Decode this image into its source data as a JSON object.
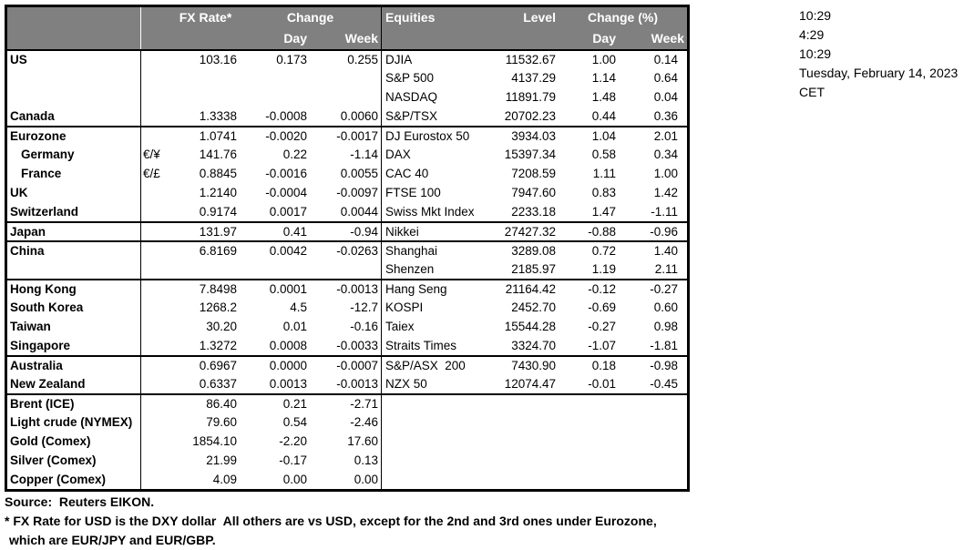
{
  "colors": {
    "header_bg": "#808080",
    "header_text": "#ffffff",
    "border": "#000000",
    "body_text": "#000000",
    "background": "#ffffff"
  },
  "header": {
    "fx_title": "FX Rate*",
    "fx_change": "Change",
    "fx_day": "Day",
    "fx_week": "Week",
    "eq_title": "Equities",
    "eq_level": "Level",
    "eq_change": "Change (%)",
    "eq_day": "Day",
    "eq_week": "Week"
  },
  "timestamps": [
    "10:29",
    "4:29",
    "10:29",
    "Tuesday, February 14, 2023",
    "CET"
  ],
  "rows": [
    {
      "group_start": true,
      "fx": {
        "label": "US",
        "rate": "103.16",
        "day": "0.173",
        "week": "0.255"
      },
      "eq": {
        "name": "DJIA",
        "level": "11532.67",
        "day": "1.00",
        "week": "0.14"
      }
    },
    {
      "group_start": false,
      "eq": {
        "name": "S&P 500",
        "level": "4137.29",
        "day": "1.14",
        "week": "0.64"
      }
    },
    {
      "group_start": false,
      "eq": {
        "name": "NASDAQ",
        "level": "11891.79",
        "day": "1.48",
        "week": "0.04"
      }
    },
    {
      "group_start": false,
      "fx": {
        "label": "Canada",
        "rate": "1.3338",
        "day": "-0.0008",
        "week": "0.0060"
      },
      "eq": {
        "name": "S&P/TSX",
        "level": "20702.23",
        "day": "0.44",
        "week": "0.36"
      }
    },
    {
      "group_start": true,
      "fx": {
        "label": "Eurozone",
        "rate": "1.0741",
        "day": "-0.0020",
        "week": "-0.0017"
      },
      "eq": {
        "name": "DJ Eurostox 50",
        "level": "3934.03",
        "day": "1.04",
        "week": "2.01"
      }
    },
    {
      "group_start": false,
      "fx": {
        "label": "Germany",
        "indent": true,
        "sym": "€/¥",
        "rate": "141.76",
        "day": "0.22",
        "week": "-1.14"
      },
      "eq": {
        "name": "DAX",
        "level": "15397.34",
        "day": "0.58",
        "week": "0.34"
      }
    },
    {
      "group_start": false,
      "fx": {
        "label": "France",
        "indent": true,
        "sym": "€/£",
        "rate": "0.8845",
        "day": "-0.0016",
        "week": "0.0055"
      },
      "eq": {
        "name": "CAC 40",
        "level": "7208.59",
        "day": "1.11",
        "week": "1.00"
      }
    },
    {
      "group_start": false,
      "fx": {
        "label": "UK",
        "rate": "1.2140",
        "day": "-0.0004",
        "week": "-0.0097"
      },
      "eq": {
        "name": "FTSE 100",
        "level": "7947.60",
        "day": "0.83",
        "week": "1.42"
      }
    },
    {
      "group_start": false,
      "fx": {
        "label": "Switzerland",
        "rate": "0.9174",
        "day": "0.0017",
        "week": "0.0044"
      },
      "eq": {
        "name": "Swiss Mkt Index",
        "level": "2233.18",
        "day": "1.47",
        "week": "-1.11"
      }
    },
    {
      "group_start": true,
      "fx": {
        "label": "Japan",
        "rate": "131.97",
        "day": "0.41",
        "week": "-0.94"
      },
      "eq": {
        "name": "Nikkei",
        "level": "27427.32",
        "day": "-0.88",
        "week": "-0.96"
      }
    },
    {
      "group_start": true,
      "fx": {
        "label": "China",
        "rate": "6.8169",
        "day": "0.0042",
        "week": "-0.0263"
      },
      "eq": {
        "name": "Shanghai",
        "level": "3289.08",
        "day": "0.72",
        "week": "1.40"
      }
    },
    {
      "group_start": false,
      "eq": {
        "name": "Shenzen",
        "level": "2185.97",
        "day": "1.19",
        "week": "2.11"
      }
    },
    {
      "group_start": true,
      "fx": {
        "label": "Hong Kong",
        "rate": "7.8498",
        "day": "0.0001",
        "week": "-0.0013"
      },
      "eq": {
        "name": "Hang Seng",
        "level": "21164.42",
        "day": "-0.12",
        "week": "-0.27"
      }
    },
    {
      "group_start": false,
      "fx": {
        "label": "South Korea",
        "rate": "1268.2",
        "day": "4.5",
        "week": "-12.7"
      },
      "eq": {
        "name": "KOSPI",
        "level": "2452.70",
        "day": "-0.69",
        "week": "0.60"
      }
    },
    {
      "group_start": false,
      "fx": {
        "label": "Taiwan",
        "rate": "30.20",
        "day": "0.01",
        "week": "-0.16"
      },
      "eq": {
        "name": "Taiex",
        "level": "15544.28",
        "day": "-0.27",
        "week": "0.98"
      }
    },
    {
      "group_start": false,
      "fx": {
        "label": "Singapore",
        "rate": "1.3272",
        "day": "0.0008",
        "week": "-0.0033"
      },
      "eq": {
        "name": "Straits Times",
        "level": "3324.70",
        "day": "-1.07",
        "week": "-1.81"
      }
    },
    {
      "group_start": true,
      "fx": {
        "label": "Australia",
        "rate": "0.6967",
        "day": "0.0000",
        "week": "-0.0007"
      },
      "eq": {
        "name": "S&P/ASX  200",
        "level": "7430.90",
        "day": "0.18",
        "week": "-0.98"
      }
    },
    {
      "group_start": false,
      "fx": {
        "label": "New Zealand",
        "rate": "0.6337",
        "day": "0.0013",
        "week": "-0.0013"
      },
      "eq": {
        "name": "NZX 50",
        "level": "12074.47",
        "day": "-0.01",
        "week": "-0.45"
      }
    },
    {
      "group_start": true,
      "fx": {
        "label": "Brent (ICE)",
        "rate": "86.40",
        "day": "0.21",
        "week": "-2.71"
      }
    },
    {
      "group_start": false,
      "fx": {
        "label": "Light crude (NYMEX)",
        "rate": "79.60",
        "day": "0.54",
        "week": "-2.46"
      }
    },
    {
      "group_start": false,
      "fx": {
        "label": "Gold (Comex)",
        "rate": "1854.10",
        "day": "-2.20",
        "week": "17.60"
      }
    },
    {
      "group_start": false,
      "fx": {
        "label": "Silver (Comex)",
        "rate": "21.99",
        "day": "-0.17",
        "week": "0.13"
      }
    },
    {
      "group_start": false,
      "fx": {
        "label": "Copper (Comex)",
        "rate": "4.09",
        "day": "0.00",
        "week": "0.00"
      }
    }
  ],
  "footer": {
    "source": "Source:  Reuters EIKON.",
    "note1": "* FX Rate for USD is the DXY dollar  All others are vs USD, except for the 2nd and 3rd ones under Eurozone,",
    "note2": "which are EUR/JPY and EUR/GBP."
  }
}
